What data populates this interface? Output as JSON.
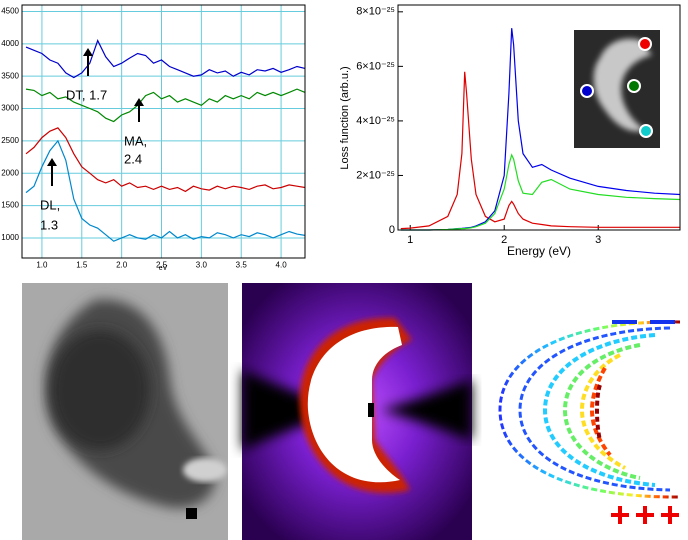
{
  "chart_data": [
    {
      "type": "line",
      "xlabel": "eV",
      "x": [
        0.8,
        0.9,
        1.0,
        1.1,
        1.2,
        1.3,
        1.4,
        1.5,
        1.6,
        1.7,
        1.8,
        1.9,
        2.0,
        2.1,
        2.2,
        2.3,
        2.4,
        2.5,
        2.6,
        2.7,
        2.8,
        2.9,
        3.0,
        3.1,
        3.2,
        3.3,
        3.4,
        3.5,
        3.6,
        3.7,
        3.8,
        3.9,
        4.0,
        4.1,
        4.2,
        4.3
      ],
      "series": [
        {
          "color": "#0000cc",
          "values": [
            3950,
            3900,
            3850,
            3750,
            3700,
            3550,
            3480,
            3550,
            3700,
            4050,
            3800,
            3650,
            3700,
            3780,
            3850,
            3820,
            3700,
            3750,
            3650,
            3600,
            3550,
            3500,
            3520,
            3600,
            3550,
            3580,
            3500,
            3560,
            3520,
            3600,
            3580,
            3620,
            3560,
            3600,
            3650,
            3620
          ]
        },
        {
          "color": "#008800",
          "values": [
            3300,
            3280,
            3200,
            3250,
            3150,
            3180,
            3100,
            3050,
            3000,
            2950,
            2850,
            2800,
            2900,
            2950,
            3050,
            3200,
            3250,
            3150,
            3200,
            3100,
            3150,
            3100,
            3050,
            3150,
            3100,
            3200,
            3150,
            3200,
            3150,
            3250,
            3200,
            3250,
            3200,
            3250,
            3300,
            3250
          ]
        },
        {
          "color": "#cc0000",
          "values": [
            2300,
            2400,
            2550,
            2650,
            2700,
            2550,
            2300,
            2100,
            2000,
            1900,
            1850,
            1900,
            1800,
            1850,
            1780,
            1800,
            1750,
            1800,
            1750,
            1780,
            1720,
            1800,
            1760,
            1740,
            1800,
            1760,
            1800,
            1780,
            1750,
            1800,
            1820,
            1760,
            1780,
            1820,
            1800,
            1780
          ]
        },
        {
          "color": "#0088cc",
          "values": [
            1700,
            1800,
            2100,
            2350,
            2500,
            2200,
            1600,
            1300,
            1200,
            1150,
            1050,
            950,
            1000,
            1050,
            1000,
            980,
            1050,
            1000,
            1100,
            1000,
            1050,
            980,
            1020,
            1000,
            1080,
            1050,
            1000,
            1050,
            1020,
            1080,
            1050,
            1000,
            1050,
            1100,
            1060,
            1040
          ]
        }
      ],
      "xlim": [
        0.75,
        4.3
      ],
      "xticks": [
        {
          "value": 1,
          "label": "1.0"
        },
        {
          "value": 1.5,
          "label": "1.5"
        },
        {
          "value": 2,
          "label": "2.0"
        },
        {
          "value": 2.5,
          "label": "2.5"
        },
        {
          "value": 3,
          "label": "3.0"
        },
        {
          "value": 3.5,
          "label": "3.5"
        },
        {
          "value": 4,
          "label": "4.0"
        }
      ],
      "ylim": [
        690,
        4600
      ],
      "yticks": [
        1000,
        1500,
        2000,
        2500,
        3000,
        3500,
        4000,
        4500
      ],
      "grid": true,
      "annotations": [
        [
          "DT, 1.7"
        ],
        [
          "MA,",
          "2.4"
        ],
        [
          "DL,",
          "1.3"
        ]
      ]
    },
    {
      "type": "line",
      "xlabel": "Energy (eV)",
      "ylabel": "Loss function (arb.u.)",
      "x": [
        0.9,
        1.0,
        1.2,
        1.4,
        1.5,
        1.55,
        1.58,
        1.6,
        1.65,
        1.7,
        1.8,
        1.9,
        2.0,
        2.05,
        2.08,
        2.1,
        2.15,
        2.2,
        2.3,
        2.4,
        2.5,
        2.7,
        3.0,
        3.3,
        3.6,
        3.87
      ],
      "series": [
        {
          "color": "#dd0000",
          "values": [
            5e-27,
            7e-27,
            1.5e-26,
            5e-26,
            1.3e-25,
            2.8e-25,
            5.8e-25,
            5e-25,
            2.6e-25,
            1.3e-25,
            5e-26,
            3e-26,
            4e-26,
            9e-26,
            1.05e-25,
            9.5e-26,
            6e-26,
            4e-26,
            2.5e-26,
            2e-26,
            1.5e-26,
            1.2e-26,
            1e-26,
            1e-26,
            1e-26,
            1e-26
          ]
        },
        {
          "color": "#0000ee",
          "values": [
            0,
            0,
            0,
            2e-27,
            5e-27,
            6e-27,
            7e-27,
            8e-27,
            1e-26,
            1.5e-26,
            3e-26,
            7e-26,
            2e-25,
            5e-25,
            7.4e-25,
            6.8e-25,
            4e-25,
            2.8e-25,
            2.3e-25,
            2.4e-25,
            2.2e-25,
            1.9e-25,
            1.6e-25,
            1.45e-25,
            1.35e-25,
            1.3e-25
          ]
        },
        {
          "color": "#22dd22",
          "values": [
            0,
            0,
            0,
            2e-27,
            4e-27,
            5e-27,
            5e-27,
            6e-27,
            8e-27,
            1.2e-26,
            2.5e-26,
            6e-26,
            1.5e-25,
            2.4e-25,
            2.75e-25,
            2.6e-25,
            1.8e-25,
            1.35e-25,
            1.3e-25,
            1.75e-25,
            1.85e-25,
            1.5e-25,
            1.3e-25,
            1.2e-25,
            1.15e-25,
            1.12e-25
          ]
        }
      ],
      "xlim": [
        0.87,
        3.87
      ],
      "xticks": [
        1,
        2,
        3
      ],
      "ylim": [
        0,
        8.25e-25
      ],
      "yticks": [
        0,
        {
          "value": 2e-25,
          "label": "2×10⁻²⁵"
        },
        {
          "value": 4e-25,
          "label": "4×10⁻²⁵"
        },
        {
          "value": 6e-25,
          "label": "6×10⁻²⁵"
        },
        {
          "value": 8e-25,
          "label": "8×10⁻²⁵"
        }
      ],
      "grid": false
    }
  ]
}
